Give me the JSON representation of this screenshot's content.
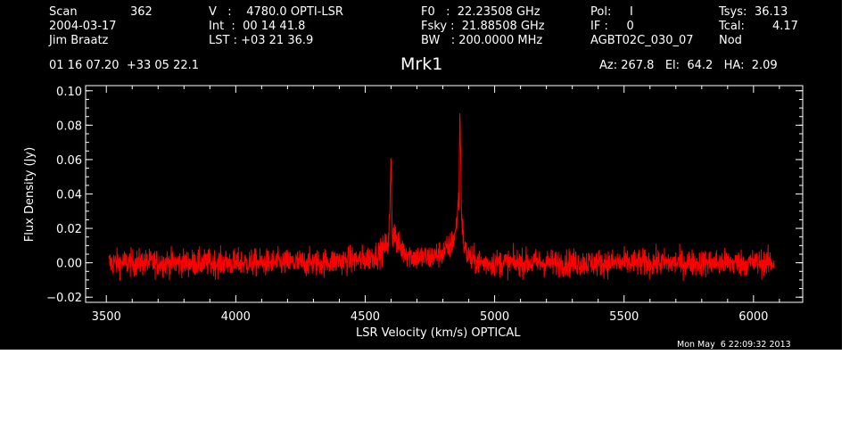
{
  "header": {
    "scan_label": "Scan",
    "scan_value": "362",
    "date": "2004-03-17",
    "observer": "Jim Braatz",
    "radec": "01 16 07.20  +33 05 22.1",
    "velocity": "V   :    4780.0 OPTI-LSR",
    "integration": "Int  :  00 14 41.8",
    "lst": "LST : +03 21 36.9",
    "f0": "F0   :  22.23508 GHz",
    "fsky": "Fsky :  21.88508 GHz",
    "bw": "BW   : 200.0000 MHz",
    "pol": "Pol:     I",
    "if": "IF :     0",
    "project": "AGBT02C_030_07",
    "tsys_label": "Tsys:",
    "tsys_value": "36.13",
    "tcal_label": "Tcal:",
    "tcal_value": "4.17",
    "procedure": "Nod",
    "azelha": "Az: 267.8   El:  64.2   HA:  2.09",
    "timestamp": "Mon May  6 22:09:32 2013"
  },
  "chart_data": {
    "type": "line",
    "title": "Mrk1",
    "xlabel": "LSR Velocity (km/s) OPTICAL",
    "ylabel": "Flux Density (Jy)",
    "xlim": [
      3420,
      6190
    ],
    "ylim": [
      -0.023,
      0.103
    ],
    "xticks": [
      3500,
      4000,
      4500,
      5000,
      5500,
      6000
    ],
    "xtick_labels": [
      "3500",
      "4000",
      "4500",
      "5000",
      "5500",
      "6000"
    ],
    "yticks": [
      -0.02,
      0.0,
      0.02,
      0.04,
      0.06,
      0.08,
      0.1
    ],
    "ytick_labels": [
      "−0.02",
      "0.00",
      "0.02",
      "0.04",
      "0.06",
      "0.08",
      "0.10"
    ],
    "grid": false,
    "series": [
      {
        "color": "#ff0000",
        "x_range": [
          3510,
          6080
        ],
        "noise_rms_jy": 0.004,
        "x": [
          3510,
          3600,
          3700,
          3800,
          3900,
          4000,
          4100,
          4200,
          4300,
          4400,
          4500,
          4560,
          4590,
          4595,
          4600,
          4603,
          4606,
          4612,
          4620,
          4640,
          4680,
          4700,
          4750,
          4800,
          4830,
          4850,
          4858,
          4862,
          4866,
          4868,
          4872,
          4876,
          4880,
          4890,
          4910,
          4950,
          5000,
          5100,
          5200,
          5300,
          5400,
          5500,
          5600,
          5700,
          5800,
          5900,
          6000,
          6080
        ],
        "y": [
          0.0,
          0.0,
          0.0,
          0.0,
          0.0,
          0.0,
          0.0,
          0.0,
          0.0,
          0.001,
          0.002,
          0.006,
          0.012,
          0.028,
          0.062,
          0.03,
          0.012,
          0.022,
          0.012,
          0.008,
          0.004,
          0.003,
          0.003,
          0.006,
          0.01,
          0.018,
          0.033,
          0.036,
          0.09,
          0.07,
          0.03,
          0.02,
          0.012,
          0.006,
          0.002,
          0.0,
          0.0,
          0.0,
          0.0,
          0.0,
          0.0,
          0.0,
          0.0,
          0.0,
          0.0,
          0.0,
          0.0,
          0.0
        ]
      }
    ]
  }
}
